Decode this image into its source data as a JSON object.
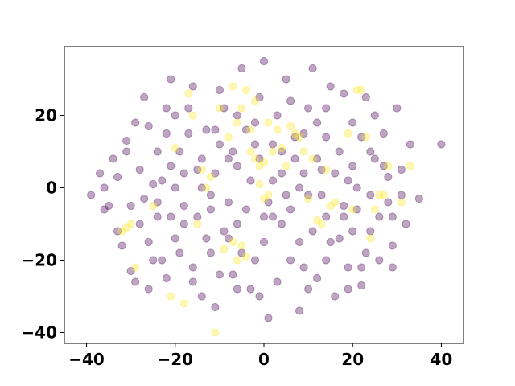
{
  "chart_data": {
    "type": "scatter",
    "title": "",
    "xlabel": "",
    "ylabel": "",
    "xlim": [
      -45,
      45
    ],
    "ylim": [
      -43,
      39
    ],
    "xticks": [
      -40,
      -20,
      0,
      20,
      40
    ],
    "yticks": [
      -40,
      -20,
      0,
      20
    ],
    "grid": false,
    "legend": "none",
    "point_alpha": 0.35,
    "series": [
      {
        "color": "#440154",
        "points": [
          [
            -39,
            -2
          ],
          [
            -37,
            4
          ],
          [
            -36,
            -6
          ],
          [
            -35,
            -5
          ],
          [
            -34,
            8
          ],
          [
            -33,
            3
          ],
          [
            -32,
            -16
          ],
          [
            -31,
            13
          ],
          [
            -30,
            -23
          ],
          [
            -29,
            -26
          ],
          [
            -28,
            5
          ],
          [
            -27,
            25
          ],
          [
            -26,
            17
          ],
          [
            -25,
            1
          ],
          [
            -24,
            -8
          ],
          [
            -23,
            -20
          ],
          [
            -22,
            15
          ],
          [
            -21,
            30
          ],
          [
            -20,
            -14
          ],
          [
            -19,
            10
          ],
          [
            -18,
            -5
          ],
          [
            -17,
            22
          ],
          [
            -16,
            -22
          ],
          [
            -15,
            5
          ],
          [
            -14,
            -30
          ],
          [
            -13,
            16
          ],
          [
            -12,
            -2
          ],
          [
            -11,
            -33
          ],
          [
            -10,
            27
          ],
          [
            -9,
            -12
          ],
          [
            -8,
            8
          ],
          [
            -7,
            -24
          ],
          [
            -6,
            20
          ],
          [
            -5,
            33
          ],
          [
            -4,
            -6
          ],
          [
            -3,
            -28
          ],
          [
            -2,
            12
          ],
          [
            -1,
            25
          ],
          [
            0,
            35
          ],
          [
            0,
            -15
          ],
          [
            1,
            -36
          ],
          [
            2,
            2
          ],
          [
            3,
            20
          ],
          [
            4,
            -10
          ],
          [
            5,
            30
          ],
          [
            6,
            -20
          ],
          [
            7,
            8
          ],
          [
            8,
            -34
          ],
          [
            9,
            15
          ],
          [
            10,
            -2
          ],
          [
            11,
            33
          ],
          [
            12,
            -25
          ],
          [
            13,
            5
          ],
          [
            14,
            22
          ],
          [
            15,
            -15
          ],
          [
            16,
            -30
          ],
          [
            17,
            10
          ],
          [
            18,
            -5
          ],
          [
            19,
            -22
          ],
          [
            20,
            18
          ],
          [
            21,
            0
          ],
          [
            22,
            -27
          ],
          [
            23,
            25
          ],
          [
            24,
            -12
          ],
          [
            25,
            8
          ],
          [
            26,
            -20
          ],
          [
            27,
            15
          ],
          [
            28,
            -4
          ],
          [
            29,
            -16
          ],
          [
            30,
            22
          ],
          [
            31,
            5
          ],
          [
            32,
            -10
          ],
          [
            33,
            12
          ],
          [
            35,
            -3
          ],
          [
            40,
            12
          ],
          [
            -28,
            -10
          ],
          [
            -26,
            -15
          ],
          [
            -24,
            10
          ],
          [
            -22,
            -25
          ],
          [
            -20,
            20
          ],
          [
            -18,
            -10
          ],
          [
            -16,
            28
          ],
          [
            -14,
            0
          ],
          [
            -12,
            -18
          ],
          [
            -10,
            12
          ],
          [
            -8,
            -4
          ],
          [
            -6,
            -28
          ],
          [
            -4,
            16
          ],
          [
            -2,
            -20
          ],
          [
            2,
            -8
          ],
          [
            4,
            10
          ],
          [
            6,
            24
          ],
          [
            8,
            -15
          ],
          [
            10,
            -28
          ],
          [
            12,
            18
          ],
          [
            14,
            -8
          ],
          [
            16,
            4
          ],
          [
            18,
            26
          ],
          [
            20,
            -12
          ],
          [
            22,
            14
          ],
          [
            24,
            -2
          ],
          [
            26,
            -8
          ],
          [
            28,
            3
          ],
          [
            -30,
            -5
          ],
          [
            -27,
            -3
          ],
          [
            -23,
            2
          ],
          [
            -19,
            -18
          ],
          [
            -15,
            -8
          ],
          [
            -11,
            4
          ],
          [
            -7,
            10
          ],
          [
            -3,
            2
          ],
          [
            1,
            -4
          ],
          [
            5,
            -2
          ],
          [
            9,
            4
          ],
          [
            13,
            -2
          ],
          [
            17,
            -14
          ],
          [
            21,
            -6
          ],
          [
            25,
            20
          ],
          [
            29,
            -22
          ],
          [
            -33,
            -12
          ],
          [
            -29,
            18
          ],
          [
            -25,
            -20
          ],
          [
            -21,
            -8
          ],
          [
            -17,
            15
          ],
          [
            -13,
            -14
          ],
          [
            -9,
            22
          ],
          [
            -5,
            -18
          ],
          [
            -1,
            8
          ],
          [
            3,
            -26
          ],
          [
            7,
            14
          ],
          [
            11,
            -12
          ],
          [
            15,
            28
          ],
          [
            19,
            2
          ],
          [
            23,
            -18
          ],
          [
            27,
            6
          ],
          [
            31,
            -2
          ],
          [
            -36,
            0
          ],
          [
            -31,
            10
          ],
          [
            -26,
            -28
          ],
          [
            -21,
            6
          ],
          [
            -16,
            -26
          ],
          [
            -11,
            16
          ],
          [
            -6,
            -10
          ],
          [
            -1,
            -30
          ],
          [
            4,
            4
          ],
          [
            9,
            -22
          ],
          [
            14,
            14
          ],
          [
            19,
            -28
          ],
          [
            24,
            10
          ],
          [
            29,
            -8
          ],
          [
            -20,
            0
          ],
          [
            -14,
            8
          ],
          [
            -8,
            -14
          ],
          [
            -2,
            18
          ],
          [
            2,
            12
          ],
          [
            8,
            0
          ],
          [
            14,
            -20
          ],
          [
            20,
            6
          ],
          [
            -24,
            -4
          ],
          [
            -18,
            4
          ],
          [
            -12,
            -6
          ],
          [
            -6,
            6
          ],
          [
            0,
            -8
          ],
          [
            6,
            -6
          ],
          [
            12,
            8
          ],
          [
            18,
            -8
          ],
          [
            -22,
            22
          ],
          [
            -10,
            -24
          ],
          [
            10,
            22
          ],
          [
            22,
            -22
          ]
        ]
      },
      {
        "color": "#fde725",
        "points": [
          [
            -32,
            -12
          ],
          [
            -31,
            -11
          ],
          [
            -30,
            -10
          ],
          [
            -29,
            -22
          ],
          [
            -25,
            -5
          ],
          [
            -21,
            -30
          ],
          [
            -20,
            11
          ],
          [
            -18,
            -32
          ],
          [
            -17,
            26
          ],
          [
            -16,
            20
          ],
          [
            -15,
            -10
          ],
          [
            -14,
            5
          ],
          [
            -13,
            0
          ],
          [
            -12,
            3
          ],
          [
            -11,
            -40
          ],
          [
            -10,
            22
          ],
          [
            -9,
            -17
          ],
          [
            -8,
            14
          ],
          [
            -7,
            -15
          ],
          [
            -7,
            28
          ],
          [
            -6,
            -20
          ],
          [
            -6,
            18
          ],
          [
            -5,
            22
          ],
          [
            -5,
            -16
          ],
          [
            -4,
            27
          ],
          [
            -4,
            -19
          ],
          [
            -3,
            16
          ],
          [
            -3,
            10
          ],
          [
            -2,
            8
          ],
          [
            -2,
            24
          ],
          [
            -1,
            6
          ],
          [
            -1,
            1
          ],
          [
            0,
            7
          ],
          [
            0,
            -3
          ],
          [
            1,
            -2
          ],
          [
            1,
            18
          ],
          [
            2,
            10
          ],
          [
            3,
            16
          ],
          [
            4,
            11
          ],
          [
            5,
            6
          ],
          [
            6,
            17
          ],
          [
            7,
            15
          ],
          [
            8,
            14
          ],
          [
            9,
            10
          ],
          [
            10,
            -3
          ],
          [
            11,
            8
          ],
          [
            12,
            -9
          ],
          [
            13,
            -10
          ],
          [
            14,
            5
          ],
          [
            15,
            -5
          ],
          [
            16,
            -4
          ],
          [
            19,
            15
          ],
          [
            20,
            -6
          ],
          [
            21,
            27
          ],
          [
            22,
            27
          ],
          [
            23,
            14
          ],
          [
            24,
            -14
          ],
          [
            25,
            -6
          ],
          [
            26,
            -2
          ],
          [
            27,
            -2
          ],
          [
            28,
            6
          ],
          [
            31,
            -4
          ],
          [
            33,
            6
          ]
        ]
      }
    ]
  }
}
